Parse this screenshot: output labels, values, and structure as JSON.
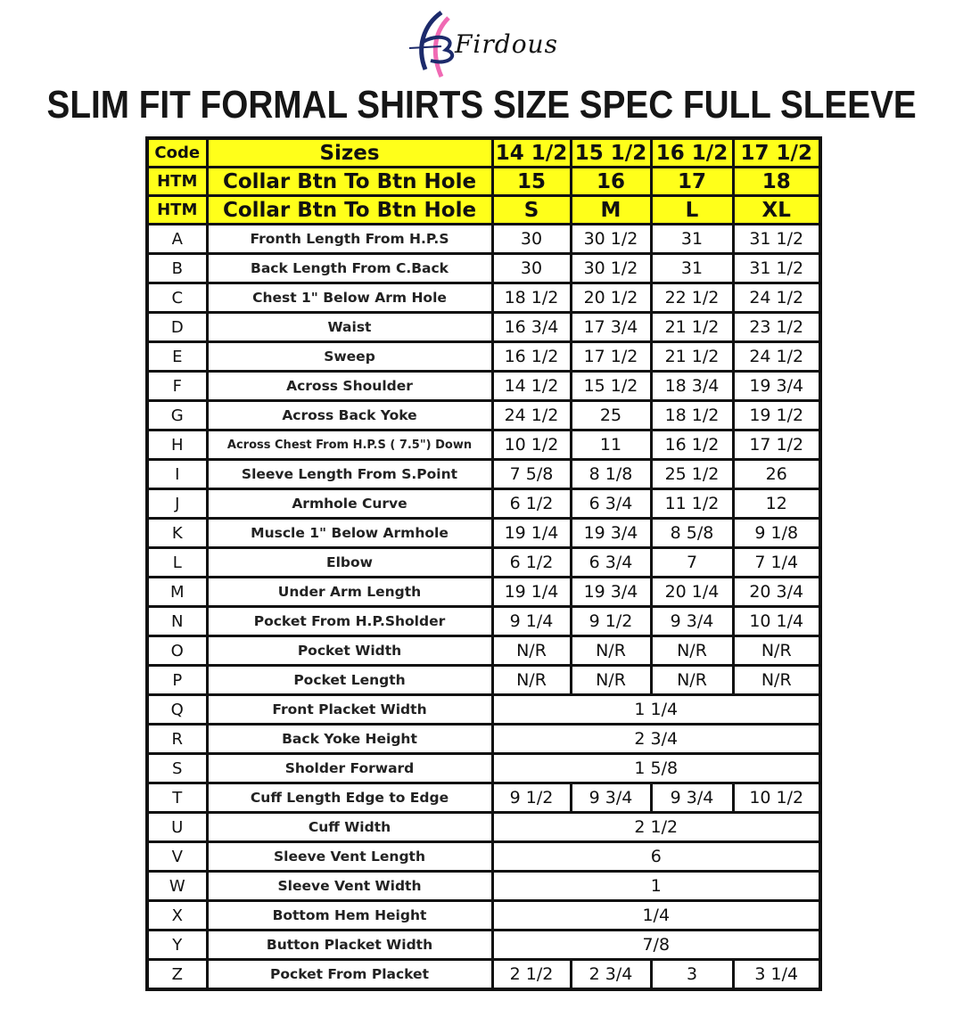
{
  "brand": {
    "name": "Firdous",
    "colors": {
      "navy": "#1c2a6b",
      "pink": "#f06ab4"
    }
  },
  "title": "SLIM FIT FORMAL SHIRTS SIZE SPEC FULL SLEEVE",
  "header_color": "#ffff1a",
  "headers": [
    {
      "code": "Code",
      "label": "Sizes",
      "values": [
        "14 1/2",
        "15 1/2",
        "16 1/2",
        "17 1/2"
      ]
    },
    {
      "code": "HTM",
      "label": "Collar Btn To Btn Hole",
      "values": [
        "15",
        "16",
        "17",
        "18"
      ]
    },
    {
      "code": "HTM",
      "label": "Collar Btn To Btn Hole",
      "values": [
        "S",
        "M",
        "L",
        "XL"
      ]
    }
  ],
  "rows": [
    {
      "code": "A",
      "label": "Fronth Length From H.P.S",
      "values": [
        "30",
        "30 1/2",
        "31",
        "31 1/2"
      ]
    },
    {
      "code": "B",
      "label": "Back Length From C.Back",
      "values": [
        "30",
        "30 1/2",
        "31",
        "31 1/2"
      ]
    },
    {
      "code": "C",
      "label": "Chest 1\" Below Arm Hole",
      "values": [
        "18 1/2",
        "20 1/2",
        "22 1/2",
        "24 1/2"
      ]
    },
    {
      "code": "D",
      "label": "Waist",
      "values": [
        "16 3/4",
        "17 3/4",
        "21 1/2",
        "23 1/2"
      ]
    },
    {
      "code": "E",
      "label": "Sweep",
      "values": [
        "16 1/2",
        "17 1/2",
        "21 1/2",
        "24 1/2"
      ]
    },
    {
      "code": "F",
      "label": "Across Shoulder",
      "values": [
        "14 1/2",
        "15 1/2",
        "18 3/4",
        "19 3/4"
      ]
    },
    {
      "code": "G",
      "label": "Across Back Yoke",
      "values": [
        "24 1/2",
        "25",
        "18 1/2",
        "19 1/2"
      ]
    },
    {
      "code": "H",
      "label": "Across Chest From H.P.S ( 7.5\") Down",
      "values": [
        "10 1/2",
        "11",
        "16 1/2",
        "17 1/2"
      ]
    },
    {
      "code": "I",
      "label": "Sleeve Length From S.Point",
      "values": [
        "7 5/8",
        "8 1/8",
        "25 1/2",
        "26"
      ]
    },
    {
      "code": "J",
      "label": "Armhole Curve",
      "values": [
        "6 1/2",
        "6 3/4",
        "11 1/2",
        "12"
      ]
    },
    {
      "code": "K",
      "label": "Muscle 1\" Below Armhole",
      "values": [
        "19 1/4",
        "19 3/4",
        "8 5/8",
        "9 1/8"
      ]
    },
    {
      "code": "L",
      "label": "Elbow",
      "values": [
        "6 1/2",
        "6 3/4",
        "7",
        "7 1/4"
      ]
    },
    {
      "code": "M",
      "label": "Under Arm Length",
      "values": [
        "19 1/4",
        "19 3/4",
        "20 1/4",
        "20 3/4"
      ]
    },
    {
      "code": "N",
      "label": "Pocket From H.P.Sholder",
      "values": [
        "9 1/4",
        "9 1/2",
        "9 3/4",
        "10 1/4"
      ]
    },
    {
      "code": "O",
      "label": "Pocket Width",
      "values": [
        "N/R",
        "N/R",
        "N/R",
        "N/R"
      ]
    },
    {
      "code": "P",
      "label": "Pocket Length",
      "values": [
        "N/R",
        "N/R",
        "N/R",
        "N/R"
      ]
    },
    {
      "code": "Q",
      "label": "Front Placket Width",
      "values": [
        "1 1/4"
      ]
    },
    {
      "code": "R",
      "label": "Back Yoke Height",
      "values": [
        "2 3/4"
      ]
    },
    {
      "code": "S",
      "label": "Sholder Forward",
      "values": [
        "1 5/8"
      ]
    },
    {
      "code": "T",
      "label": "Cuff Length Edge to Edge",
      "values": [
        "9 1/2",
        "9 3/4",
        "9 3/4",
        "10 1/2"
      ]
    },
    {
      "code": "U",
      "label": "Cuff Width",
      "values": [
        "2 1/2"
      ]
    },
    {
      "code": "V",
      "label": "Sleeve Vent Length",
      "values": [
        "6"
      ]
    },
    {
      "code": "W",
      "label": "Sleeve Vent Width",
      "values": [
        "1"
      ]
    },
    {
      "code": "X",
      "label": "Bottom Hem Height",
      "values": [
        "1/4"
      ]
    },
    {
      "code": "Y",
      "label": "Button Placket Width",
      "values": [
        "7/8"
      ]
    },
    {
      "code": "Z",
      "label": "Pocket From Placket",
      "values": [
        "2 1/2",
        "2 3/4",
        "3",
        "3 1/4"
      ]
    }
  ]
}
